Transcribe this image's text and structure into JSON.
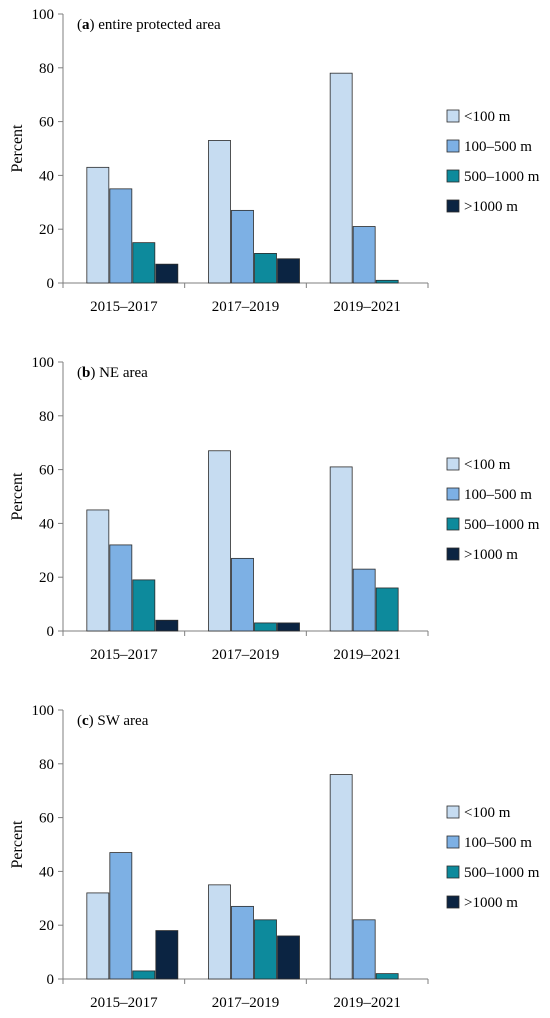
{
  "colors": {
    "<100 m": "#c6dcf1",
    "100–500 m": "#7db0e4",
    "500–1000 m": "#0d8a9c",
    ">1000 m": "#0b2442",
    "bar_stroke": "#2b2b2b",
    "axis": "#7f7f7f"
  },
  "chart_data": [
    {
      "type": "bar",
      "title_tag": "a",
      "title_text": " entire protected area",
      "ylabel": "Percent",
      "xlabel": "",
      "ylim": [
        0,
        100
      ],
      "yticks": [
        "0",
        "20",
        "40",
        "60",
        "80",
        "100"
      ],
      "grid": false,
      "legend_position": "right",
      "categories": [
        "2015–2017",
        "2017–2019",
        "2019–2021"
      ],
      "series": [
        {
          "name": "<100 m",
          "values": [
            43,
            53,
            78
          ]
        },
        {
          "name": "100–500 m",
          "values": [
            35,
            27,
            21
          ]
        },
        {
          "name": "500–1000 m",
          "values": [
            15,
            11,
            1
          ]
        },
        {
          "name": ">1000 m",
          "values": [
            7,
            9,
            0
          ]
        }
      ]
    },
    {
      "type": "bar",
      "title_tag": "b",
      "title_text": " NE area",
      "ylabel": "Percent",
      "xlabel": "",
      "ylim": [
        0,
        100
      ],
      "yticks": [
        "0",
        "20",
        "40",
        "60",
        "80",
        "100"
      ],
      "grid": false,
      "legend_position": "right",
      "categories": [
        "2015–2017",
        "2017–2019",
        "2019–2021"
      ],
      "series": [
        {
          "name": "<100 m",
          "values": [
            45,
            67,
            61
          ]
        },
        {
          "name": "100–500 m",
          "values": [
            32,
            27,
            23
          ]
        },
        {
          "name": "500–1000 m",
          "values": [
            19,
            3,
            16
          ]
        },
        {
          "name": ">1000 m",
          "values": [
            4,
            3,
            0
          ]
        }
      ]
    },
    {
      "type": "bar",
      "title_tag": "c",
      "title_text": " SW area",
      "ylabel": "Percent",
      "xlabel": "",
      "ylim": [
        0,
        100
      ],
      "yticks": [
        "0",
        "20",
        "40",
        "60",
        "80",
        "100"
      ],
      "grid": false,
      "legend_position": "right",
      "categories": [
        "2015–2017",
        "2017–2019",
        "2019–2021"
      ],
      "series": [
        {
          "name": "<100 m",
          "values": [
            32,
            35,
            76
          ]
        },
        {
          "name": "100–500 m",
          "values": [
            47,
            27,
            22
          ]
        },
        {
          "name": "500–1000 m",
          "values": [
            3,
            22,
            2
          ]
        },
        {
          "name": ">1000 m",
          "values": [
            18,
            16,
            0
          ]
        }
      ]
    }
  ]
}
